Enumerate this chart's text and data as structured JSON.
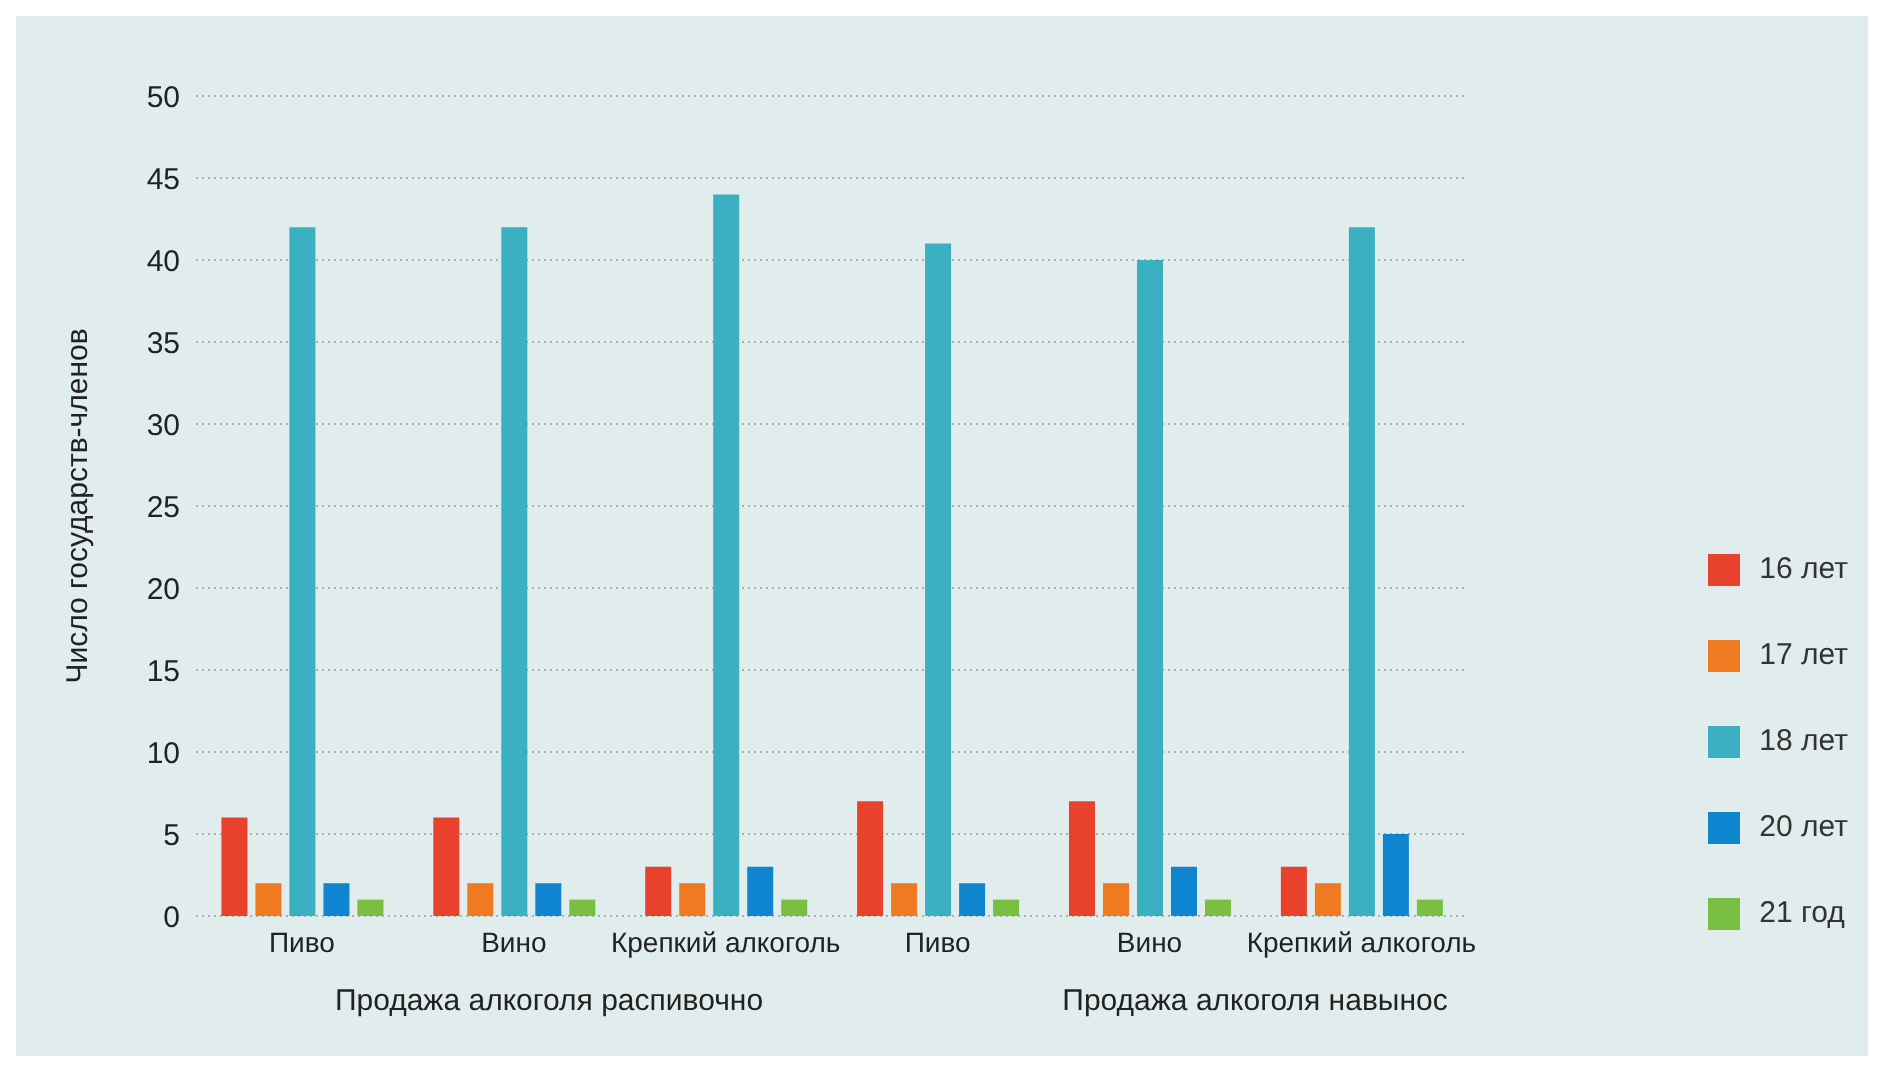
{
  "chart_data": {
    "type": "bar",
    "ylabel": "Число государств-членов",
    "categories": [
      "Пиво",
      "Вино",
      "Крепкий алкоголь",
      "Пиво",
      "Вино",
      "Крепкий алкоголь"
    ],
    "series": [
      {
        "name": "16 лет",
        "color": "#e8412c",
        "values": [
          6,
          6,
          3,
          7,
          7,
          3
        ]
      },
      {
        "name": "17 лет",
        "color": "#f07a22",
        "values": [
          2,
          2,
          2,
          2,
          2,
          2
        ]
      },
      {
        "name": "18 лет",
        "color": "#3ab0c0",
        "values": [
          42,
          42,
          44,
          41,
          40,
          42
        ]
      },
      {
        "name": "20 лет",
        "color": "#0f85cf",
        "values": [
          2,
          2,
          3,
          2,
          3,
          5
        ]
      },
      {
        "name": "21 год",
        "color": "#79bf42",
        "values": [
          1,
          1,
          1,
          1,
          1,
          1
        ]
      }
    ],
    "ylim": [
      0,
      50
    ],
    "yticks": [
      0,
      5,
      10,
      15,
      20,
      25,
      30,
      35,
      40,
      45,
      50
    ],
    "grid": "y",
    "legend": "right",
    "annotations": [
      "Продажа алкоголя распивочно",
      "Продажа алкоголя навынос"
    ]
  }
}
